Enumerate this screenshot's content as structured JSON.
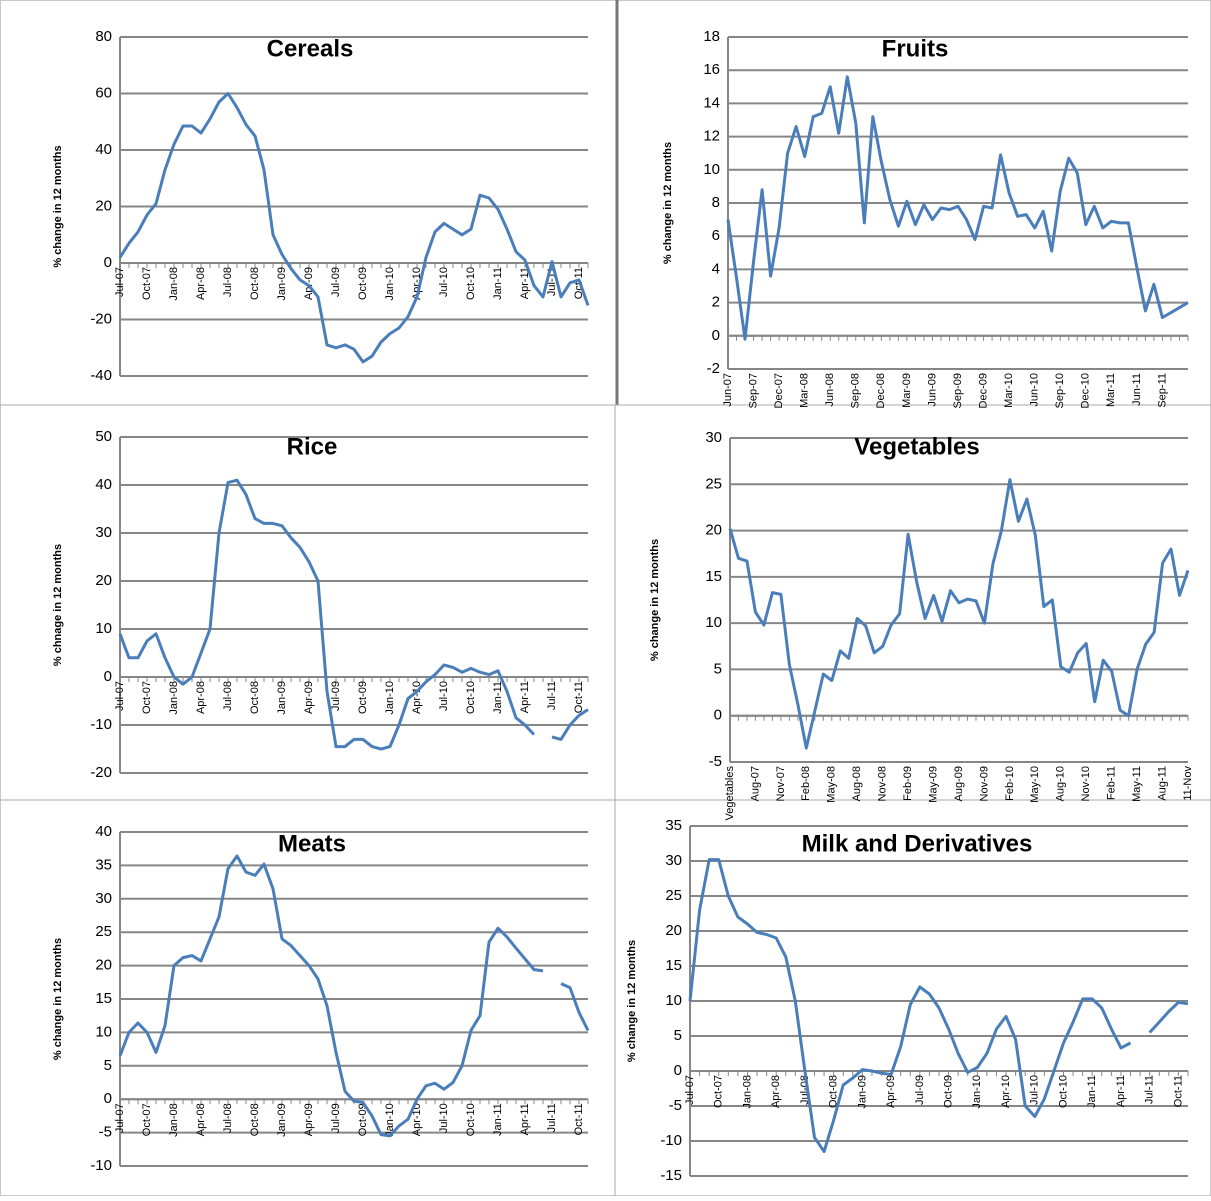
{
  "chart_data": [
    {
      "type": "line",
      "title": "Cereals",
      "y_label": "% change in 12 months",
      "color": "#4a7ebb",
      "grid": true,
      "tick_labels_at": "zero",
      "ylim": [
        -40,
        80
      ],
      "yticks": [
        -40,
        -20,
        0,
        20,
        40,
        60,
        80
      ],
      "categories": [
        "Jul-07",
        null,
        null,
        "Oct-07",
        null,
        null,
        "Jan-08",
        null,
        null,
        "Apr-08",
        null,
        null,
        "Jul-08",
        null,
        null,
        "Oct-08",
        null,
        null,
        "Jan-09",
        null,
        null,
        "Apr-09",
        null,
        null,
        "Jul-09",
        null,
        null,
        "Oct-09",
        null,
        null,
        "Jan-10",
        null,
        null,
        "Apr-10",
        null,
        null,
        "Jul-10",
        null,
        null,
        "Oct-10",
        null,
        null,
        "Jan-11",
        null,
        null,
        "Apr-11",
        null,
        null,
        "Jul-11",
        null,
        null,
        "Oct-11",
        null
      ],
      "values": [
        2,
        7,
        11,
        17,
        21,
        33,
        42,
        48.5,
        48.5,
        46,
        51,
        57,
        60,
        55,
        49,
        45,
        33,
        10,
        3,
        -2,
        -6,
        -8,
        -12,
        -29,
        -30,
        -29,
        -30.5,
        -35,
        -33,
        -28,
        -25,
        -23,
        -19,
        -12,
        2,
        11,
        14,
        12,
        10,
        12,
        24,
        23,
        19,
        12,
        4,
        1,
        -8,
        -12,
        0.5,
        -12,
        -7,
        -6,
        -15
      ]
    },
    {
      "type": "line",
      "title": "Fruits",
      "y_label": "% change in 12 months",
      "color": "#4a7ebb",
      "grid": true,
      "tick_labels_at": "bottom",
      "ylim": [
        -2,
        18
      ],
      "yticks": [
        -2,
        0,
        2,
        4,
        6,
        8,
        10,
        12,
        14,
        16,
        18
      ],
      "categories": [
        "Jun-07",
        null,
        null,
        "Sep-07",
        null,
        null,
        "Dec-07",
        null,
        null,
        "Mar-08",
        null,
        null,
        "Jun-08",
        null,
        null,
        "Sep-08",
        null,
        null,
        "Dec-08",
        null,
        null,
        "Mar-09",
        null,
        null,
        "Jun-09",
        null,
        null,
        "Sep-09",
        null,
        null,
        "Dec-09",
        null,
        null,
        "Mar-10",
        null,
        null,
        "Jun-10",
        null,
        null,
        "Sep-10",
        null,
        null,
        "Dec-10",
        null,
        null,
        "Mar-11",
        null,
        null,
        "Jun-11",
        null,
        null,
        "Sep-11",
        null,
        null,
        null
      ],
      "values": [
        7,
        3.5,
        -0.2,
        4.5,
        8.8,
        3.6,
        6.5,
        11,
        12.6,
        10.8,
        13.2,
        13.4,
        15,
        12.2,
        15.6,
        12.8,
        6.8,
        13.2,
        10.5,
        8.2,
        6.6,
        8.1,
        6.7,
        7.9,
        7,
        7.7,
        7.6,
        7.8,
        7,
        5.8,
        7.8,
        7.7,
        10.9,
        8.6,
        7.2,
        7.3,
        6.5,
        7.5,
        5.1,
        8.7,
        10.7,
        9.8,
        6.7,
        7.8,
        6.5,
        6.9,
        6.8,
        6.8,
        4.1,
        1.5,
        3.1,
        1.1,
        1.4,
        1.7,
        2
      ]
    },
    {
      "type": "line",
      "title": "Rice",
      "y_label": "% chnage in 12 months",
      "color": "#4a7ebb",
      "grid": true,
      "tick_labels_at": "zero",
      "ylim": [
        -20,
        50
      ],
      "yticks": [
        -20,
        -10,
        0,
        10,
        20,
        30,
        40,
        50
      ],
      "categories": [
        "Jul-07",
        null,
        null,
        "Oct-07",
        null,
        null,
        "Jan-08",
        null,
        null,
        "Apr-08",
        null,
        null,
        "Jul-08",
        null,
        null,
        "Oct-08",
        null,
        null,
        "Jan-09",
        null,
        null,
        "Apr-09",
        null,
        null,
        "Jul-09",
        null,
        null,
        "Oct-09",
        null,
        null,
        "Jan-10",
        null,
        null,
        "Apr-10",
        null,
        null,
        "Jul-10",
        null,
        null,
        "Oct-10",
        null,
        null,
        "Jan-11",
        null,
        null,
        "Apr-11",
        null,
        null,
        "Jul-11",
        null,
        null,
        "Oct-11",
        null
      ],
      "values": [
        9,
        4,
        4,
        7.5,
        9,
        4,
        0,
        -1.5,
        0,
        5,
        10,
        30,
        40.5,
        41,
        38,
        33,
        32,
        32,
        31.5,
        29,
        27,
        24,
        20,
        -3,
        -14.5,
        -14.5,
        -13,
        -13,
        -14.5,
        -15,
        -14.5,
        -10,
        -4.5,
        -3,
        -1,
        0.5,
        2.5,
        2,
        1,
        1.8,
        1,
        0.5,
        1.3,
        -3,
        -8.5,
        -10,
        -12,
        null,
        -12.5,
        -13,
        -10,
        -8,
        -6.8
      ]
    },
    {
      "type": "line",
      "title": "Vegetables",
      "y_label": "% change in 12 months",
      "color": "#4a7ebb",
      "grid": true,
      "tick_labels_at": "bottom",
      "ylim": [
        -5,
        30
      ],
      "yticks": [
        -5,
        0,
        5,
        10,
        15,
        20,
        25,
        30
      ],
      "categories": [
        "Vegetables",
        null,
        null,
        "Aug-07",
        null,
        null,
        "Nov-07",
        null,
        null,
        "Feb-08",
        null,
        null,
        "May-08",
        null,
        null,
        "Aug-08",
        null,
        null,
        "Nov-08",
        null,
        null,
        "Feb-09",
        null,
        null,
        "May-09",
        null,
        null,
        "Aug-09",
        null,
        null,
        "Nov-09",
        null,
        null,
        "Feb-10",
        null,
        null,
        "May-10",
        null,
        null,
        "Aug-10",
        null,
        null,
        "Nov-10",
        null,
        null,
        "Feb-11",
        null,
        null,
        "May-11",
        null,
        null,
        "Aug-11",
        null,
        null,
        "11-Nov"
      ],
      "values": [
        20.2,
        17,
        16.7,
        11.2,
        9.8,
        13.3,
        13.1,
        5.5,
        1.2,
        -3.5,
        0.5,
        4.5,
        3.8,
        7,
        6.2,
        10.5,
        9.7,
        6.8,
        7.5,
        9.8,
        11,
        19.6,
        14.5,
        10.5,
        13,
        10.2,
        13.5,
        12.2,
        12.6,
        12.4,
        10,
        16.4,
        20,
        25.5,
        21,
        23.4,
        19.5,
        11.8,
        12.5,
        5.3,
        4.7,
        6.8,
        7.8,
        1.5,
        6,
        4.8,
        0.6,
        0,
        5,
        7.7,
        9,
        16.5,
        18,
        13,
        15.7
      ]
    },
    {
      "type": "line",
      "title": "Meats",
      "y_label": "% change in 12 months",
      "color": "#4a7ebb",
      "grid": true,
      "tick_labels_at": "zero",
      "ylim": [
        -10,
        40
      ],
      "yticks": [
        -10,
        -5,
        0,
        5,
        10,
        15,
        20,
        25,
        30,
        35,
        40
      ],
      "categories": [
        "Jul-07",
        null,
        null,
        "Oct-07",
        null,
        null,
        "Jan-08",
        null,
        null,
        "Apr-08",
        null,
        null,
        "Jul-08",
        null,
        null,
        "Oct-08",
        null,
        null,
        "Jan-09",
        null,
        null,
        "Apr-09",
        null,
        null,
        "Jul-09",
        null,
        null,
        "Oct-09",
        null,
        null,
        "Jan-10",
        null,
        null,
        "Apr-10",
        null,
        null,
        "Jul-10",
        null,
        null,
        "Oct-10",
        null,
        null,
        "Jan-11",
        null,
        null,
        "Apr-11",
        null,
        null,
        "Jul-11",
        null,
        null,
        "Oct-11",
        null
      ],
      "values": [
        6.5,
        10,
        11.4,
        10,
        7,
        11,
        20,
        21.2,
        21.5,
        20.7,
        24,
        27.3,
        34.5,
        36.4,
        34,
        33.5,
        35.2,
        31.5,
        24,
        23,
        21.5,
        20,
        18,
        14,
        7,
        1.2,
        -0.3,
        -0.5,
        -2.5,
        -5.3,
        -5.5,
        -4,
        -3,
        0,
        2,
        2.4,
        1.5,
        2.5,
        5,
        10.3,
        12.5,
        23.5,
        25.6,
        24.3,
        22.6,
        21,
        19.4,
        19.2,
        null,
        17.3,
        16.7,
        13,
        10.3
      ]
    },
    {
      "type": "line",
      "title": "Milk and Derivatives",
      "y_label": "% change in 12 months",
      "color": "#4a7ebb",
      "grid": true,
      "tick_labels_at": "zero",
      "ylim": [
        -15,
        35
      ],
      "yticks": [
        -15,
        -10,
        -5,
        0,
        5,
        10,
        15,
        20,
        25,
        30,
        35
      ],
      "categories": [
        "Jul-07",
        null,
        null,
        "Oct-07",
        null,
        null,
        "Jan-08",
        null,
        null,
        "Apr-08",
        null,
        null,
        "Jul-08",
        null,
        null,
        "Oct-08",
        null,
        null,
        "Jan-09",
        null,
        null,
        "Apr-09",
        null,
        null,
        "Jul-09",
        null,
        null,
        "Oct-09",
        null,
        null,
        "Jan-10",
        null,
        null,
        "Apr-10",
        null,
        null,
        "Jul-10",
        null,
        null,
        "Oct-10",
        null,
        null,
        "Jan-11",
        null,
        null,
        "Apr-11",
        null,
        null,
        "Jul-11",
        null,
        null,
        "Oct-11",
        null
      ],
      "values": [
        10,
        23,
        30.2,
        30.2,
        25,
        22,
        21,
        19.8,
        19.5,
        19,
        16.3,
        10,
        0,
        -9.5,
        -11.5,
        -7,
        -2,
        -1,
        0.2,
        0,
        -0.3,
        -0.5,
        3.5,
        9.5,
        12,
        11,
        9,
        6,
        2.5,
        -0.2,
        0.5,
        2.5,
        6,
        7.8,
        4.5,
        -5,
        -6.5,
        -4,
        0,
        4,
        7,
        10.3,
        10.3,
        9,
        6,
        3.3,
        4,
        null,
        5.5,
        7,
        8.5,
        9.8,
        9.6
      ]
    }
  ]
}
